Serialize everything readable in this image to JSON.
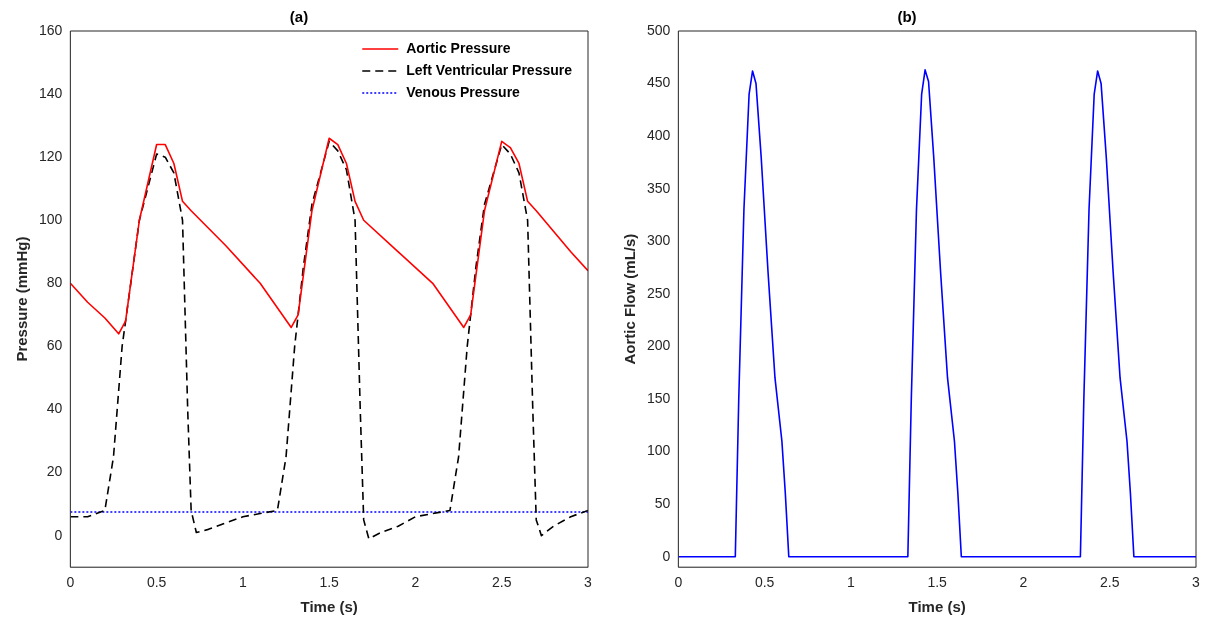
{
  "chart_data": [
    {
      "type": "line",
      "title": "(a)",
      "xlabel": "Time (s)",
      "ylabel": "Pressure (mmHg)",
      "xlim": [
        0,
        3
      ],
      "xticks": [
        0,
        0.5,
        1,
        1.5,
        2,
        2.5,
        3
      ],
      "ylim": [
        -10,
        160
      ],
      "yticks": [
        0,
        20,
        40,
        60,
        80,
        100,
        120,
        140,
        160
      ],
      "grid": false,
      "legend": "top right",
      "marker": "none",
      "series": [
        {
          "name": "Aortic Pressure",
          "color": "#ff0000",
          "line_style": "solid",
          "x": [
            0,
            0.1,
            0.2,
            0.28,
            0.32,
            0.4,
            0.5,
            0.55,
            0.6,
            0.65,
            0.7,
            0.9,
            1.1,
            1.28,
            1.32,
            1.4,
            1.5,
            1.55,
            1.6,
            1.65,
            1.7,
            1.9,
            2.1,
            2.28,
            2.32,
            2.4,
            2.5,
            2.55,
            2.6,
            2.65,
            2.7,
            2.9,
            3
          ],
          "values": [
            80,
            74,
            69,
            64,
            68,
            100,
            124,
            124,
            118,
            106,
            103,
            92,
            80,
            66,
            70,
            103,
            126,
            124,
            118,
            106,
            100,
            90,
            80,
            66,
            70,
            103,
            125,
            123,
            118,
            106,
            103,
            90,
            84
          ]
        },
        {
          "name": "Left Ventricular Pressure",
          "color": "#000000",
          "line_style": "dashed",
          "x": [
            0,
            0.1,
            0.2,
            0.25,
            0.3,
            0.35,
            0.4,
            0.5,
            0.55,
            0.6,
            0.65,
            0.68,
            0.7,
            0.73,
            0.8,
            0.9,
            1.0,
            1.1,
            1.2,
            1.25,
            1.3,
            1.35,
            1.4,
            1.5,
            1.55,
            1.6,
            1.65,
            1.68,
            1.7,
            1.73,
            1.8,
            1.9,
            2.0,
            2.1,
            2.2,
            2.25,
            2.3,
            2.35,
            2.4,
            2.5,
            2.55,
            2.6,
            2.65,
            2.68,
            2.7,
            2.73,
            2.8,
            2.9,
            3
          ],
          "values": [
            6,
            6,
            8,
            25,
            60,
            80,
            100,
            121,
            120,
            115,
            100,
            40,
            8,
            1,
            2,
            4,
            6,
            7,
            8,
            25,
            60,
            85,
            105,
            125,
            122,
            116,
            100,
            40,
            5,
            -1,
            1,
            3,
            6,
            7,
            8,
            25,
            60,
            85,
            105,
            124,
            121,
            115,
            100,
            40,
            5,
            0,
            3,
            6,
            8
          ]
        },
        {
          "name": "Venous Pressure",
          "color": "#0000ff",
          "line_style": "dotted",
          "x": [
            0,
            0.5,
            1,
            1.5,
            2,
            2.5,
            3
          ],
          "values": [
            7.5,
            7.5,
            7.5,
            7.5,
            7.5,
            7.5,
            7.5
          ]
        }
      ]
    },
    {
      "type": "line",
      "title": "(b)",
      "xlabel": "Time (s)",
      "ylabel": "Aortic Flow (mL/s)",
      "xlim": [
        0,
        3
      ],
      "xticks": [
        0,
        0.5,
        1,
        1.5,
        2,
        2.5,
        3
      ],
      "ylim": [
        -10,
        500
      ],
      "yticks": [
        0,
        50,
        100,
        150,
        200,
        250,
        300,
        350,
        400,
        450,
        500
      ],
      "grid": false,
      "marker": "none",
      "series": [
        {
          "color": "#0000ff",
          "line_style": "solid",
          "x": [
            0,
            0.33,
            0.35,
            0.38,
            0.41,
            0.43,
            0.45,
            0.48,
            0.52,
            0.56,
            0.6,
            0.62,
            0.64,
            1,
            1.33,
            1.35,
            1.38,
            1.41,
            1.43,
            1.45,
            1.48,
            1.52,
            1.56,
            1.6,
            1.62,
            1.64,
            2,
            2.33,
            2.35,
            2.38,
            2.41,
            2.43,
            2.45,
            2.48,
            2.52,
            2.56,
            2.6,
            2.62,
            2.64,
            3
          ],
          "values": [
            0,
            0,
            150,
            330,
            440,
            462,
            450,
            380,
            270,
            170,
            110,
            60,
            0,
            0,
            0,
            150,
            330,
            440,
            463,
            452,
            380,
            270,
            170,
            110,
            60,
            0,
            0,
            0,
            150,
            330,
            440,
            462,
            450,
            380,
            270,
            170,
            110,
            60,
            0,
            0
          ]
        }
      ]
    }
  ]
}
